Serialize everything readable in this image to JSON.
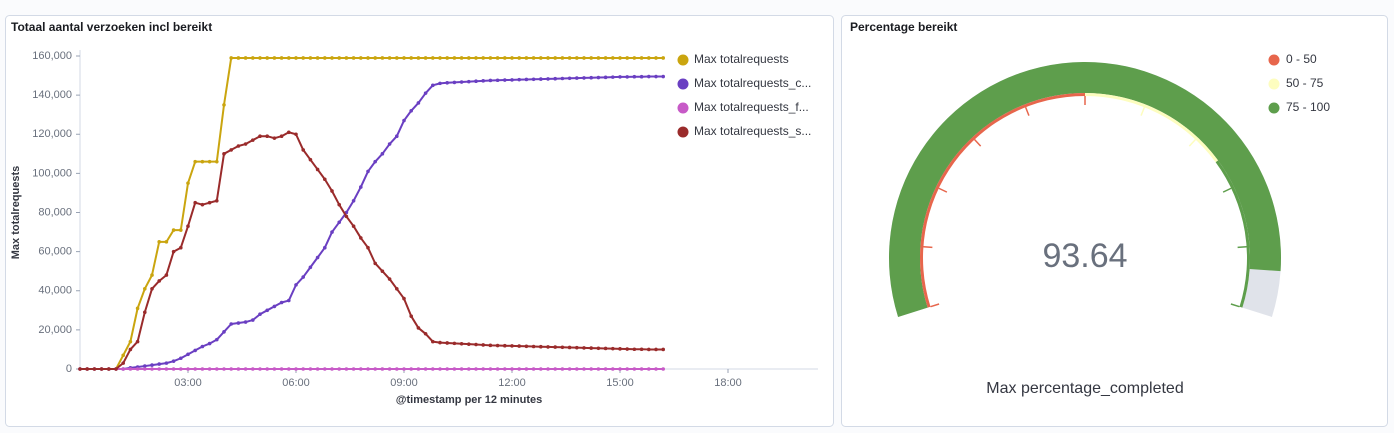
{
  "chart_data": [
    {
      "type": "line",
      "title": "Totaal aantal verzoeken incl bereikt",
      "x_label": "@timestamp per 12 minutes",
      "y_label": "Max totalrequests",
      "x": [
        0,
        0.2,
        0.4,
        0.6,
        0.8,
        1,
        1.2,
        1.4,
        1.6,
        1.8,
        2,
        2.2,
        2.4,
        2.6,
        2.8,
        3,
        3.2,
        3.4,
        3.6,
        3.8,
        4,
        4.2,
        4.4,
        4.6,
        4.8,
        5,
        5.2,
        5.4,
        5.6,
        5.8,
        6,
        6.2,
        6.4,
        6.6,
        6.8,
        7,
        7.2,
        7.4,
        7.6,
        7.8,
        8,
        8.2,
        8.4,
        8.6,
        8.8,
        9,
        9.2,
        9.4,
        9.6,
        9.8,
        10,
        10.2,
        10.4,
        10.6,
        10.8,
        11,
        11.2,
        11.4,
        11.6,
        11.8,
        12,
        12.2,
        12.4,
        12.6,
        12.8,
        13,
        13.2,
        13.4,
        13.6,
        13.8,
        14,
        14.2,
        14.4,
        14.6,
        14.8,
        15,
        15.2,
        15.4,
        15.6,
        15.8,
        16,
        16.2
      ],
      "xlim": [
        0,
        20.5
      ],
      "xticks": [
        {
          "value": 3,
          "label": "03:00"
        },
        {
          "value": 6,
          "label": "06:00"
        },
        {
          "value": 9,
          "label": "09:00"
        },
        {
          "value": 12,
          "label": "12:00"
        },
        {
          "value": 15,
          "label": "15:00"
        },
        {
          "value": 18,
          "label": "18:00"
        }
      ],
      "ylim": [
        0,
        160000
      ],
      "yticks": [
        0,
        {
          "value": 20000,
          "label": "20,000"
        },
        {
          "value": 40000,
          "label": "40,000"
        },
        {
          "value": 60000,
          "label": "60,000"
        },
        {
          "value": 80000,
          "label": "80,000"
        },
        {
          "value": 100000,
          "label": "100,000"
        },
        {
          "value": 120000,
          "label": "120,000"
        },
        {
          "value": 140000,
          "label": "140,000"
        },
        {
          "value": 160000,
          "label": "160,000"
        }
      ],
      "grid": false,
      "series": [
        {
          "name": "Max totalrequests",
          "color": "#caa50f",
          "values": [
            0,
            0,
            0,
            0,
            0,
            0,
            7000,
            14000,
            31000,
            41000,
            48000,
            65000,
            65000,
            71000,
            71000,
            95000,
            106000,
            106000,
            106000,
            106000,
            135000,
            159000,
            159000,
            159000,
            159000,
            159000,
            159000,
            159000,
            159000,
            159000,
            159000,
            159000,
            159000,
            159000,
            159000,
            159000,
            159000,
            159000,
            159000,
            159000,
            159000,
            159000,
            159000,
            159000,
            159000,
            159000,
            159000,
            159000,
            159000,
            159000,
            159000,
            159000,
            159000,
            159000,
            159000,
            159000,
            159000,
            159000,
            159000,
            159000,
            159000,
            159000,
            159000,
            159000,
            159000,
            159000,
            159000,
            159000,
            159000,
            159000,
            159000,
            159000,
            159000,
            159000,
            159000,
            159000,
            159000,
            159000,
            159000,
            159000,
            159000,
            159000
          ]
        },
        {
          "name": "Max totalrequests_c...",
          "color": "#6a3fc2",
          "values": [
            0,
            0,
            0,
            0,
            0,
            0,
            0,
            600,
            1000,
            1500,
            2000,
            2500,
            3000,
            4000,
            5500,
            7500,
            9500,
            11500,
            13000,
            15000,
            19000,
            23000,
            23500,
            24000,
            25000,
            28000,
            30000,
            32000,
            34000,
            35000,
            43000,
            47000,
            52000,
            57000,
            62000,
            70000,
            75000,
            80000,
            86000,
            93000,
            101000,
            106000,
            110000,
            115000,
            119000,
            127000,
            132000,
            136000,
            141000,
            145000,
            146000,
            146300,
            146500,
            146700,
            146900,
            147100,
            147300,
            147500,
            147600,
            147700,
            147800,
            147900,
            148000,
            148100,
            148200,
            148300,
            148400,
            148500,
            148600,
            148700,
            148800,
            148900,
            149000,
            149100,
            149200,
            149300,
            149300,
            149400,
            149400,
            149500,
            149500,
            149500
          ]
        },
        {
          "name": "Max totalrequests_f...",
          "color": "#c75ac7",
          "values": [
            0,
            0,
            0,
            0,
            0,
            0,
            0,
            0,
            0,
            0,
            0,
            0,
            0,
            0,
            0,
            0,
            0,
            0,
            0,
            0,
            0,
            0,
            0,
            0,
            0,
            0,
            0,
            0,
            0,
            0,
            0,
            0,
            0,
            0,
            0,
            0,
            0,
            0,
            0,
            0,
            0,
            0,
            0,
            0,
            0,
            0,
            0,
            0,
            0,
            0,
            0,
            0,
            0,
            0,
            0,
            0,
            0,
            0,
            0,
            0,
            0,
            0,
            0,
            0,
            0,
            0,
            0,
            0,
            0,
            0,
            0,
            0,
            0,
            0,
            0,
            0,
            0,
            0,
            0,
            0,
            0,
            0
          ]
        },
        {
          "name": "Max totalrequests_s...",
          "color": "#9a2b2b",
          "values": [
            0,
            0,
            0,
            0,
            0,
            0,
            3000,
            10000,
            14000,
            29000,
            41000,
            45000,
            48000,
            60000,
            62000,
            73000,
            85000,
            84000,
            85000,
            86000,
            110000,
            112000,
            114000,
            115000,
            117000,
            119000,
            119000,
            118000,
            119000,
            121000,
            120000,
            112000,
            107000,
            102000,
            97000,
            91000,
            84000,
            78000,
            73000,
            67000,
            62000,
            54000,
            50000,
            46000,
            41000,
            36000,
            27000,
            21000,
            18000,
            14000,
            13500,
            13300,
            13100,
            12900,
            12700,
            12500,
            12300,
            12100,
            12000,
            11900,
            11800,
            11700,
            11600,
            11500,
            11400,
            11300,
            11200,
            11100,
            11000,
            10900,
            10800,
            10700,
            10600,
            10500,
            10400,
            10300,
            10200,
            10100,
            10100,
            10000,
            10000,
            10000
          ]
        }
      ]
    },
    {
      "type": "gauge",
      "title": "Percentage bereikt",
      "label": "Max percentage_completed",
      "value": 93.64,
      "min": 0,
      "max": 100,
      "ticks": [
        0,
        10,
        20,
        30,
        40,
        50,
        60,
        70,
        80,
        90,
        100
      ],
      "ranges": [
        {
          "from": 0,
          "to": 50,
          "label": "0 - 50",
          "color": "#e7664c"
        },
        {
          "from": 50,
          "to": 75,
          "label": "50 - 75",
          "color": "#fdfdbf"
        },
        {
          "from": 75,
          "to": 100,
          "label": "75 - 100",
          "color": "#5e9e4c"
        }
      ],
      "track_color": "#e0e3ea"
    }
  ]
}
